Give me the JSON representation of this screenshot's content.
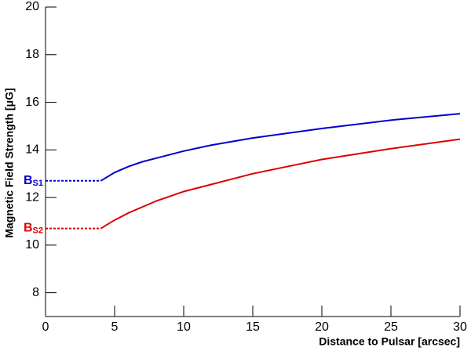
{
  "chart_data": {
    "type": "line",
    "x_label": "Distance to Pulsar [arcsec]",
    "y_label": "Magnetic Field Strength [μG]",
    "x": [
      4,
      5,
      6,
      7,
      8,
      10,
      12,
      15,
      20,
      25,
      30
    ],
    "series": [
      {
        "name": "BS1",
        "color": "#0000cc",
        "values": [
          12.7,
          13.05,
          13.3,
          13.5,
          13.65,
          13.95,
          14.2,
          14.5,
          14.9,
          15.25,
          15.52
        ]
      },
      {
        "name": "BS2",
        "color": "#dd0000",
        "values": [
          10.7,
          11.05,
          11.35,
          11.6,
          11.85,
          12.25,
          12.55,
          13.0,
          13.6,
          14.05,
          14.45
        ]
      }
    ],
    "annotations": [
      {
        "text": "B",
        "sub": "S1",
        "value": 12.7,
        "color": "#0000cc"
      },
      {
        "text": "B",
        "sub": "S2",
        "value": 10.7,
        "color": "#dd0000"
      }
    ],
    "xlim": [
      0,
      30
    ],
    "xticks": [
      0,
      5,
      10,
      15,
      20,
      25,
      30
    ],
    "ylim": [
      7,
      20
    ],
    "yticks": [
      8,
      10,
      12,
      14,
      16,
      18,
      20
    ],
    "grid": false
  }
}
